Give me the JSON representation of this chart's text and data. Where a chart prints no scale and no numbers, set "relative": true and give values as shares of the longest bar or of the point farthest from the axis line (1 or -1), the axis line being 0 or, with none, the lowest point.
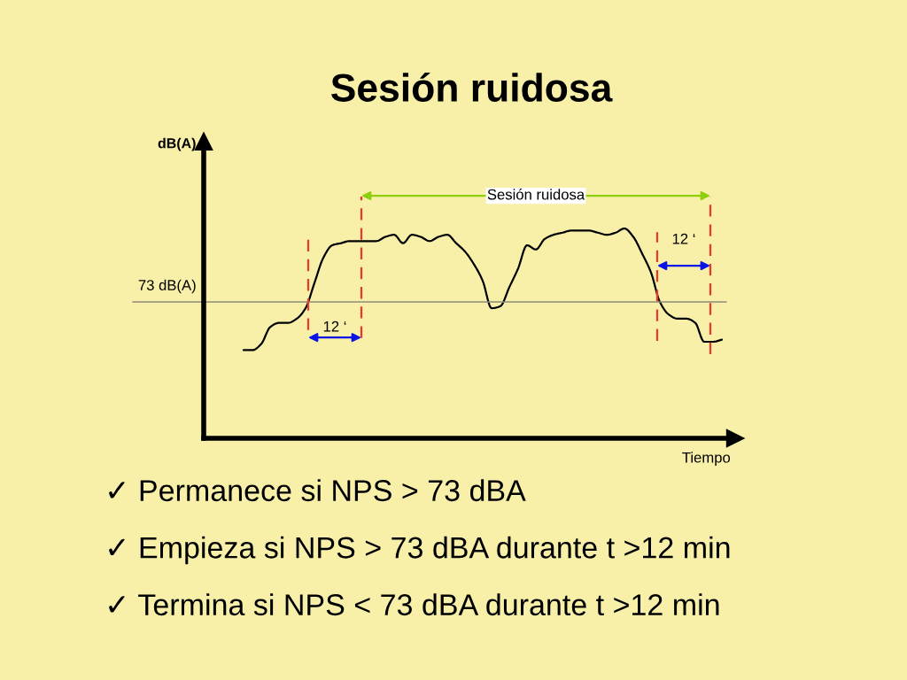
{
  "chart_data": {
    "type": "line",
    "title": "Sesión ruidosa",
    "xlabel": "Tiempo",
    "relative": true,
    "color": "#000000",
    "tick_labels": false,
    "categories": [
      null,
      null,
      null,
      null,
      null,
      null,
      null,
      null,
      null,
      null,
      null,
      null,
      null,
      null,
      null,
      null,
      null,
      null,
      null,
      null,
      null,
      null,
      null,
      null,
      null,
      null,
      null,
      null,
      null,
      null,
      null,
      null,
      null,
      null,
      null,
      null,
      null,
      null,
      null,
      null,
      null,
      null,
      null,
      null,
      null,
      null,
      null,
      null,
      null,
      null,
      null,
      null,
      null,
      null,
      null,
      null,
      null,
      null,
      null,
      null,
      null
    ],
    "values": [
      null,
      null,
      null,
      null,
      0.42,
      0.42,
      0.45,
      0.53,
      0.55,
      0.55,
      0.57,
      0.62,
      0.74,
      0.86,
      0.92,
      0.93,
      0.94,
      0.94,
      0.94,
      0.94,
      0.96,
      0.97,
      0.93,
      0.97,
      0.96,
      0.94,
      0.96,
      0.97,
      0.93,
      0.89,
      0.83,
      0.75,
      0.62,
      0.63,
      0.72,
      0.81,
      0.92,
      0.9,
      0.95,
      0.97,
      0.98,
      0.99,
      0.99,
      0.99,
      0.98,
      0.97,
      0.98,
      1.0,
      0.96,
      0.88,
      0.79,
      0.65,
      0.59,
      0.57,
      0.57,
      0.55,
      0.46,
      0.46,
      0.47,
      null,
      null
    ],
    "ref_lines": [
      {
        "axis": "y",
        "value": 0.65,
        "label": "73 dB(A)",
        "color": "#8c8c78",
        "line_style": "solid"
      }
    ],
    "annotations": [
      "dB(A)",
      "Sesión ruidosa",
      "12 ‘",
      "12 ‘",
      "✓ Permanece si NPS > 73 dBA",
      "✓ Empieza si NPS > 73 dBA durante t >12 min",
      "✓ Termina si NPS < 73 dBA durante t >12 min"
    ]
  }
}
